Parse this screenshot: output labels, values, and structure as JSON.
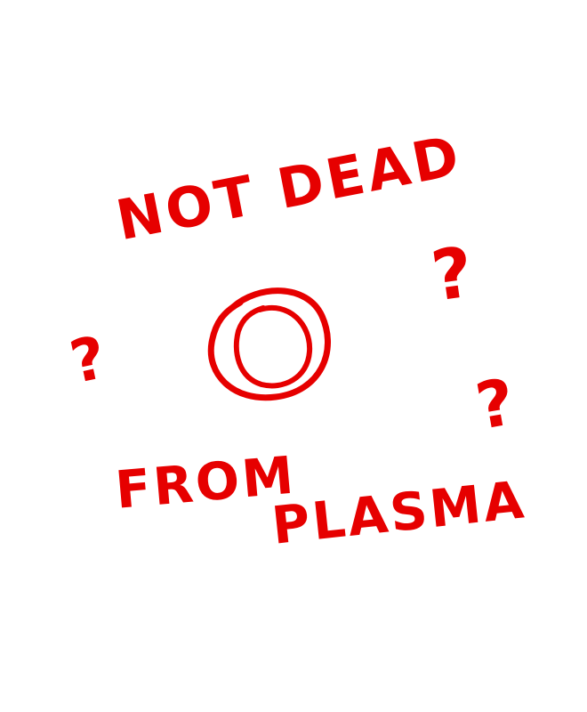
{
  "drawing": {
    "ink_color": "#e60000",
    "background_color": "#ffffff",
    "line_top": "NOT DEAD",
    "line_bottom_1": "FROM",
    "line_bottom_2": "PLASMA",
    "question_marks": [
      "?",
      "?",
      "?"
    ],
    "center_symbol": "circle-within-circle"
  }
}
